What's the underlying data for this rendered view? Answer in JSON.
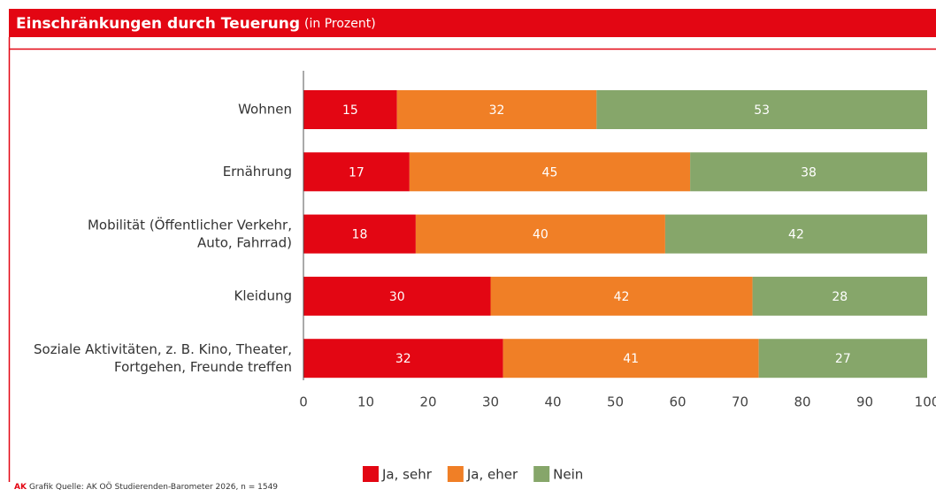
{
  "chart_data": {
    "type": "stacked_barh",
    "title": "Einschränkungen durch Teuerung",
    "subtitle": "(in Prozent)",
    "categories": [
      "Wohnen",
      "Ernährung",
      "Mobilität (Öffentlicher Verkehr,\nAuto, Fahrrad)",
      "Kleidung",
      "Soziale Aktivitäten, z. B. Kino, Theater,\nFortgehen, Freunde treffen"
    ],
    "series": [
      {
        "name": "Ja, sehr",
        "color": "#e30613",
        "values": [
          15,
          17,
          18,
          30,
          32
        ]
      },
      {
        "name": "Ja, eher",
        "color": "#f07f26",
        "values": [
          32,
          45,
          40,
          42,
          41
        ]
      },
      {
        "name": "Nein",
        "color": "#86a66a",
        "values": [
          53,
          38,
          42,
          28,
          27
        ]
      }
    ],
    "xlim": [
      0,
      100
    ],
    "xticks": [
      0,
      10,
      20,
      30,
      40,
      50,
      60,
      70,
      80,
      90,
      100
    ],
    "legend": "bottom",
    "footer": {
      "brand": "AK",
      "text": "Grafik  Quelle: AK OÖ Studierenden-Barometer 2026, n = 1549"
    }
  }
}
